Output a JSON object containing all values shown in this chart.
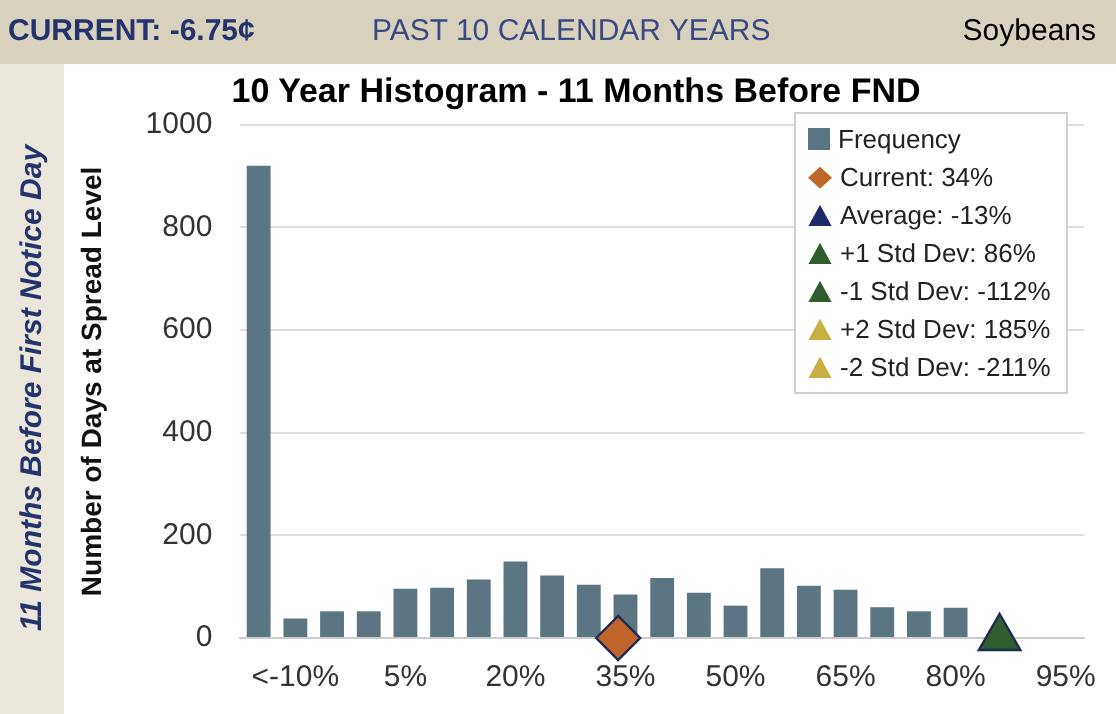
{
  "chart_data": {
    "type": "bar",
    "title": "10 Year Histogram - 11 Months Before FND",
    "ylabel": "Number of Days at Spread Level",
    "annotations": [
      "CURRENT: -6.75¢",
      "PAST 10 CALENDAR YEARS",
      "Soybeans",
      "11 Months Before First Notice Day"
    ],
    "x": [
      -15,
      -10,
      -5,
      0,
      5,
      10,
      15,
      20,
      25,
      30,
      35,
      40,
      45,
      50,
      55,
      60,
      65,
      70,
      75,
      80
    ],
    "xlim": [
      -17.5,
      97.5
    ],
    "xticks": [
      {
        "value": -10,
        "label": "<-10%"
      },
      {
        "value": 5,
        "label": "5%"
      },
      {
        "value": 20,
        "label": "20%"
      },
      {
        "value": 35,
        "label": "35%"
      },
      {
        "value": 50,
        "label": "50%"
      },
      {
        "value": 65,
        "label": "65%"
      },
      {
        "value": 80,
        "label": "80%"
      },
      {
        "value": 95,
        "label": "95%"
      }
    ],
    "ylim": [
      0,
      1000
    ],
    "yticks": [
      0,
      200,
      400,
      600,
      800,
      1000
    ],
    "grid": "y",
    "legend": "top right",
    "series": [
      {
        "name": "Frequency",
        "color": "#5b7582",
        "values": [
          920,
          38,
          52,
          52,
          96,
          98,
          114,
          149,
          122,
          104,
          85,
          117,
          88,
          63,
          136,
          102,
          94,
          60,
          52,
          59
        ]
      },
      {
        "name": "Current: 34%",
        "type": "scatter",
        "marker": "diamond",
        "color": "#c0652b",
        "x": [
          34
        ],
        "values": [
          0
        ]
      },
      {
        "name": "Average: -13%",
        "type": "scatter",
        "marker": "triangle",
        "color": "#1f2a6b",
        "x": [
          null
        ],
        "values": [
          null
        ]
      },
      {
        "name": "+1 Std Dev: 86%",
        "type": "scatter",
        "marker": "triangle",
        "color": "#2e5e2e",
        "x": [
          86
        ],
        "values": [
          0
        ]
      },
      {
        "name": "-1 Std Dev: -112%",
        "type": "scatter",
        "marker": "triangle",
        "color": "#2e5e2e",
        "x": [
          null
        ],
        "values": [
          null
        ]
      },
      {
        "name": "+2 Std Dev: 185%",
        "type": "scatter",
        "marker": "triangle",
        "color": "#c8b040",
        "x": [
          null
        ],
        "values": [
          null
        ]
      },
      {
        "name": "-2 Std Dev: -211%",
        "type": "scatter",
        "marker": "triangle",
        "color": "#c8b040",
        "x": [
          null
        ],
        "values": [
          null
        ]
      }
    ]
  }
}
